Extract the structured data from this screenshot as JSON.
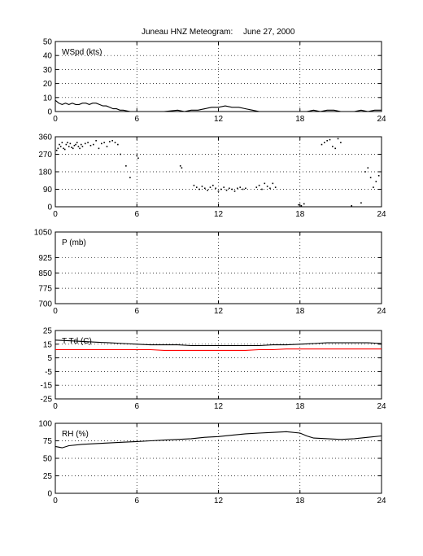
{
  "title_station": "Juneau HNZ Meteogram:",
  "title_date": "June 27, 2000",
  "chart_data": [
    {
      "type": "line",
      "label": "WSpd (kts)",
      "ylim": [
        0,
        50
      ],
      "yticks": [
        0,
        10,
        20,
        30,
        40,
        50
      ],
      "xlim": [
        0,
        24
      ],
      "xticks": [
        0,
        6,
        12,
        18,
        24
      ],
      "grid": true,
      "series": [
        {
          "color": "#000000",
          "style": "line",
          "x": [
            0,
            0.25,
            0.5,
            0.75,
            1.0,
            1.25,
            1.5,
            1.75,
            2.0,
            2.25,
            2.5,
            2.75,
            3.0,
            3.25,
            3.5,
            3.75,
            4.0,
            4.25,
            4.5,
            4.75,
            5.0,
            5.5,
            6.0,
            6.5,
            7.0,
            8.0,
            9.0,
            9.5,
            10.0,
            10.5,
            11.0,
            11.5,
            12.0,
            12.5,
            13.0,
            13.5,
            14.0,
            14.5,
            15.0,
            16.0,
            17.0,
            18.0,
            18.5,
            19.0,
            19.5,
            20.0,
            20.5,
            21.0,
            22.0,
            22.5,
            23.0,
            23.5,
            24.0
          ],
          "y": [
            8,
            6,
            5,
            6,
            5,
            6,
            5,
            5,
            6,
            6,
            5,
            6,
            6,
            5,
            4,
            4,
            3,
            2,
            2,
            1,
            1,
            0,
            0,
            0,
            0,
            0,
            1,
            0,
            1,
            1,
            2,
            3,
            3,
            4,
            3,
            3,
            2,
            1,
            0,
            0,
            0,
            0,
            0,
            1,
            0,
            1,
            1,
            0,
            0,
            1,
            0,
            1,
            1
          ]
        }
      ]
    },
    {
      "type": "scatter",
      "label": "",
      "ylim": [
        0,
        360
      ],
      "yticks": [
        0,
        90,
        180,
        270,
        360
      ],
      "xlim": [
        0,
        24
      ],
      "xticks": [
        0,
        6,
        12,
        18,
        24
      ],
      "grid": true,
      "series": [
        {
          "color": "#000000",
          "style": "dots",
          "x": [
            0.1,
            0.2,
            0.3,
            0.4,
            0.5,
            0.6,
            0.7,
            0.8,
            0.9,
            1.0,
            1.1,
            1.2,
            1.3,
            1.4,
            1.5,
            1.6,
            1.7,
            1.8,
            1.9,
            2.0,
            2.2,
            2.4,
            2.6,
            2.8,
            3.0,
            3.2,
            3.4,
            3.6,
            3.8,
            4.0,
            4.2,
            4.4,
            4.6,
            4.8,
            5.2,
            5.5,
            6.0,
            6.1,
            9.2,
            9.3,
            10.2,
            10.4,
            10.6,
            10.8,
            11.0,
            11.2,
            11.4,
            11.6,
            11.8,
            12.0,
            12.2,
            12.4,
            12.6,
            12.8,
            13.0,
            13.2,
            13.4,
            13.6,
            13.8,
            14.0,
            14.8,
            15.0,
            15.2,
            15.4,
            15.6,
            15.8,
            16.0,
            16.2,
            17.9,
            18.1,
            18.3,
            19.6,
            19.8,
            20.0,
            20.2,
            20.4,
            20.6,
            20.8,
            21.0,
            21.8,
            22.5,
            22.8,
            23.0,
            23.2,
            23.4,
            23.6,
            23.8
          ],
          "y": [
            290,
            300,
            320,
            310,
            330,
            300,
            295,
            320,
            330,
            310,
            325,
            305,
            300,
            315,
            320,
            330,
            310,
            300,
            320,
            310,
            325,
            330,
            315,
            320,
            340,
            300,
            325,
            330,
            310,
            335,
            340,
            330,
            320,
            270,
            210,
            150,
            265,
            250,
            210,
            200,
            110,
            100,
            90,
            105,
            95,
            85,
            100,
            110,
            95,
            80,
            90,
            100,
            85,
            95,
            90,
            80,
            95,
            100,
            90,
            95,
            100,
            110,
            90,
            120,
            105,
            95,
            120,
            100,
            10,
            5,
            15,
            320,
            330,
            340,
            345,
            310,
            300,
            350,
            330,
            5,
            20,
            180,
            200,
            150,
            100,
            130,
            160
          ]
        }
      ]
    },
    {
      "type": "line",
      "label": "P (mb)",
      "ylim": [
        700,
        1050
      ],
      "yticks": [
        700,
        775,
        850,
        925,
        1050
      ],
      "xlim": [
        0,
        24
      ],
      "xticks": [
        0,
        6,
        12,
        18,
        24
      ],
      "grid": true,
      "series": []
    },
    {
      "type": "line",
      "label": "T Td (C)",
      "ylim": [
        -25,
        25
      ],
      "yticks": [
        -25,
        -15,
        -5,
        5,
        15,
        25
      ],
      "xlim": [
        0,
        24
      ],
      "xticks": [
        0,
        6,
        12,
        18,
        24
      ],
      "grid": true,
      "series": [
        {
          "color": "#000000",
          "style": "line",
          "x": [
            0,
            1,
            2,
            3,
            4,
            5,
            6,
            7,
            8,
            9,
            10,
            11,
            12,
            13,
            14,
            15,
            16,
            17,
            18,
            19,
            20,
            21,
            22,
            23,
            24
          ],
          "y": [
            18,
            17.5,
            17,
            16.5,
            16,
            15.5,
            15,
            14.5,
            14.5,
            14.5,
            14,
            14,
            14,
            14,
            14,
            14,
            14.5,
            14.5,
            15,
            15.5,
            16,
            16,
            16,
            16,
            15.5
          ]
        },
        {
          "color": "#ff0000",
          "style": "line",
          "x": [
            0,
            1,
            2,
            3,
            4,
            5,
            6,
            7,
            8,
            9,
            10,
            11,
            12,
            13,
            14,
            15,
            16,
            17,
            18,
            19,
            20,
            21,
            22,
            23,
            24
          ],
          "y": [
            11,
            11,
            11,
            11,
            11,
            11,
            11,
            11,
            10.5,
            10.5,
            10.5,
            10.5,
            10.5,
            10.5,
            10.5,
            11,
            11,
            11.5,
            11.5,
            11.5,
            11.5,
            11.5,
            11.5,
            11.5,
            11.5
          ]
        }
      ]
    },
    {
      "type": "line",
      "label": "RH (%)",
      "ylim": [
        0,
        100
      ],
      "yticks": [
        0,
        25,
        50,
        75,
        100
      ],
      "xlim": [
        0,
        24
      ],
      "xticks": [
        0,
        6,
        12,
        18,
        24
      ],
      "grid": true,
      "series": [
        {
          "color": "#000000",
          "style": "line",
          "x": [
            0,
            0.5,
            1,
            2,
            3,
            4,
            5,
            6,
            7,
            8,
            9,
            10,
            11,
            12,
            13,
            14,
            15,
            16,
            17,
            18,
            18.5,
            19,
            20,
            21,
            22,
            23,
            24
          ],
          "y": [
            67,
            65,
            68,
            70,
            71,
            72,
            73,
            74,
            75,
            76,
            77,
            78,
            80,
            81,
            83,
            85,
            86,
            87,
            88,
            86,
            82,
            79,
            78,
            77,
            78,
            80,
            82
          ]
        }
      ]
    }
  ]
}
